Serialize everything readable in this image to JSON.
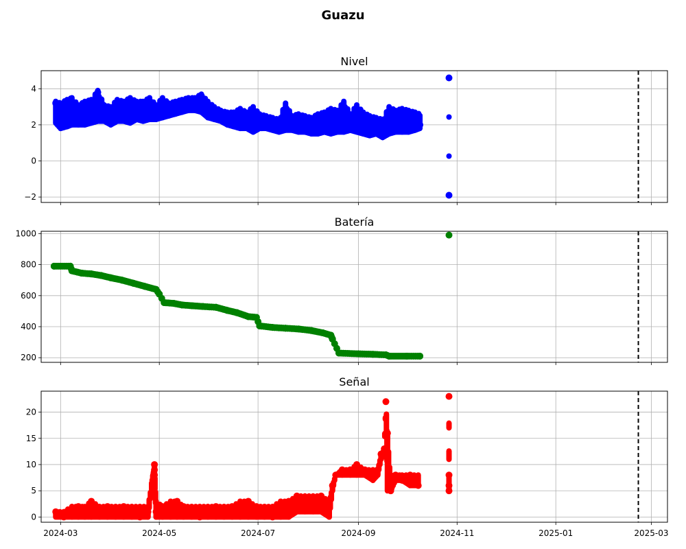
{
  "title": "Guazu",
  "colors": {
    "nivel": "#0000ff",
    "bateria": "#008000",
    "senal": "#ff0000",
    "grid": "#b0b0b0",
    "vline": "#000000"
  },
  "vline_date": "2025-02-21",
  "xlim": [
    "2024-02-18",
    "2025-03-11"
  ],
  "x_ticks": [
    "2024-03",
    "2024-05",
    "2024-07",
    "2024-09",
    "2024-11",
    "2025-01",
    "2025-03"
  ],
  "chart_data": [
    {
      "type": "scatter",
      "title": "Nivel",
      "color": "#0000ff",
      "ylim": [
        -2.3,
        5.0
      ],
      "yticks": [
        "−2",
        "0",
        "2",
        "4"
      ],
      "grid": true,
      "x": [
        "2024-02-27",
        "2024-03-01",
        "2024-03-05",
        "2024-03-08",
        "2024-03-12",
        "2024-03-16",
        "2024-03-20",
        "2024-03-24",
        "2024-03-28",
        "2024-04-01",
        "2024-04-05",
        "2024-04-09",
        "2024-04-13",
        "2024-04-17",
        "2024-04-21",
        "2024-04-25",
        "2024-04-29",
        "2024-05-03",
        "2024-05-07",
        "2024-05-11",
        "2024-05-15",
        "2024-05-19",
        "2024-05-23",
        "2024-05-27",
        "2024-05-31",
        "2024-06-04",
        "2024-06-08",
        "2024-06-12",
        "2024-06-16",
        "2024-06-20",
        "2024-06-24",
        "2024-06-28",
        "2024-07-02",
        "2024-07-06",
        "2024-07-10",
        "2024-07-14",
        "2024-07-18",
        "2024-07-22",
        "2024-07-26",
        "2024-07-30",
        "2024-08-03",
        "2024-08-07",
        "2024-08-11",
        "2024-08-15",
        "2024-08-19",
        "2024-08-23",
        "2024-08-27",
        "2024-08-31",
        "2024-09-04",
        "2024-09-08",
        "2024-09-12",
        "2024-09-16",
        "2024-09-20",
        "2024-09-24",
        "2024-09-28",
        "2024-10-02",
        "2024-10-06",
        "2024-10-09",
        "2024-10-27",
        "2024-10-27"
      ],
      "y": [
        3.2,
        2.8,
        2.5,
        3.3,
        2.6,
        2.4,
        3.0,
        3.8,
        2.7,
        2.5,
        3.0,
        2.4,
        3.4,
        2.9,
        2.6,
        3.2,
        2.7,
        3.0,
        2.6,
        2.9,
        3.1,
        3.3,
        3.2,
        3.6,
        2.9,
        2.6,
        2.5,
        2.4,
        2.3,
        2.5,
        2.2,
        2.6,
        2.1,
        2.2,
        2.0,
        1.9,
        2.8,
        2.0,
        2.2,
        1.9,
        2.1,
        2.0,
        1.9,
        2.5,
        2.1,
        3.0,
        2.0,
        2.4,
        2.2,
        1.8,
        2.1,
        1.7,
        2.7,
        2.0,
        2.2,
        2.1,
        2.4,
        2.0,
        4.6,
        -1.9
      ],
      "lows": [
        2.1,
        1.8,
        1.9,
        2.0,
        2.0,
        2.0,
        2.1,
        2.2,
        2.2,
        2.0,
        2.2,
        2.2,
        2.1,
        2.3,
        2.2,
        2.3,
        2.3,
        2.4,
        2.5,
        2.6,
        2.7,
        2.8,
        2.8,
        2.7,
        2.4,
        2.3,
        2.2,
        2.0,
        1.9,
        1.8,
        1.8,
        1.6,
        1.8,
        1.8,
        1.7,
        1.6,
        1.7,
        1.7,
        1.6,
        1.6,
        1.5,
        1.5,
        1.6,
        1.5,
        1.6,
        1.6,
        1.7,
        1.6,
        1.5,
        1.4,
        1.5,
        1.3,
        1.5,
        1.6,
        1.6,
        1.6,
        1.7,
        1.8,
        4.6,
        -1.9
      ],
      "highs": [
        3.3,
        3.2,
        3.4,
        3.5,
        3.1,
        3.3,
        3.4,
        3.9,
        3.1,
        3.0,
        3.4,
        3.3,
        3.5,
        3.3,
        3.3,
        3.5,
        3.1,
        3.5,
        3.2,
        3.3,
        3.4,
        3.5,
        3.5,
        3.7,
        3.3,
        3.0,
        2.8,
        2.7,
        2.7,
        2.9,
        2.7,
        3.0,
        2.6,
        2.5,
        2.4,
        2.3,
        3.2,
        2.5,
        2.6,
        2.5,
        2.4,
        2.6,
        2.7,
        2.9,
        2.8,
        3.3,
        2.6,
        3.1,
        2.7,
        2.5,
        2.4,
        2.3,
        3.0,
        2.8,
        2.9,
        2.8,
        2.7,
        2.6,
        4.6,
        -1.9
      ]
    },
    {
      "type": "scatter",
      "title": "Batería",
      "color": "#008000",
      "ylim": [
        170,
        1015
      ],
      "yticks": [
        "200",
        "400",
        "600",
        "800",
        "1000"
      ],
      "grid": true,
      "x": [
        "2024-02-26",
        "2024-03-07",
        "2024-03-08",
        "2024-03-14",
        "2024-03-20",
        "2024-03-26",
        "2024-04-01",
        "2024-04-08",
        "2024-04-15",
        "2024-04-22",
        "2024-04-29",
        "2024-05-01",
        "2024-05-04",
        "2024-05-10",
        "2024-05-15",
        "2024-05-21",
        "2024-05-28",
        "2024-06-05",
        "2024-06-12",
        "2024-06-18",
        "2024-06-25",
        "2024-06-30",
        "2024-07-02",
        "2024-07-10",
        "2024-07-18",
        "2024-07-26",
        "2024-08-03",
        "2024-08-10",
        "2024-08-15",
        "2024-08-16",
        "2024-08-20",
        "2024-09-01",
        "2024-09-10",
        "2024-09-18",
        "2024-09-20",
        "2024-10-01",
        "2024-10-09",
        "2024-10-27"
      ],
      "y": [
        790,
        790,
        760,
        745,
        740,
        730,
        715,
        700,
        680,
        660,
        640,
        610,
        555,
        550,
        540,
        535,
        530,
        525,
        505,
        490,
        465,
        460,
        405,
        395,
        390,
        385,
        375,
        360,
        345,
        320,
        230,
        225,
        222,
        218,
        210,
        210,
        210,
        990
      ]
    },
    {
      "type": "scatter",
      "title": "Señal",
      "color": "#ff0000",
      "ylim": [
        -1.0,
        24.0
      ],
      "yticks": [
        "0",
        "5",
        "10",
        "15",
        "20"
      ],
      "grid": true,
      "x": [
        "2024-02-27",
        "2024-03-03",
        "2024-03-08",
        "2024-03-12",
        "2024-03-16",
        "2024-03-20",
        "2024-03-25",
        "2024-03-30",
        "2024-04-04",
        "2024-04-09",
        "2024-04-14",
        "2024-04-19",
        "2024-04-24",
        "2024-04-27",
        "2024-04-28",
        "2024-04-29",
        "2024-05-03",
        "2024-05-08",
        "2024-05-12",
        "2024-05-16",
        "2024-05-21",
        "2024-05-26",
        "2024-05-31",
        "2024-06-05",
        "2024-06-10",
        "2024-06-15",
        "2024-06-20",
        "2024-06-25",
        "2024-06-30",
        "2024-07-05",
        "2024-07-10",
        "2024-07-15",
        "2024-07-20",
        "2024-07-25",
        "2024-07-30",
        "2024-08-04",
        "2024-08-09",
        "2024-08-14",
        "2024-08-16",
        "2024-08-18",
        "2024-08-22",
        "2024-08-27",
        "2024-08-31",
        "2024-09-05",
        "2024-09-10",
        "2024-09-13",
        "2024-09-15",
        "2024-09-17",
        "2024-09-18",
        "2024-09-19",
        "2024-09-21",
        "2024-09-24",
        "2024-09-28",
        "2024-10-03",
        "2024-10-08",
        "2024-10-27",
        "2024-10-27",
        "2024-10-27",
        "2024-10-27"
      ],
      "y": [
        1,
        0,
        1,
        2,
        1,
        3,
        1,
        2,
        1,
        2,
        1,
        0,
        1,
        7,
        10,
        1,
        2,
        1,
        3,
        2,
        1,
        0,
        1,
        2,
        1,
        2,
        1,
        3,
        2,
        1,
        0,
        2,
        3,
        4,
        3,
        3,
        4,
        2,
        6,
        8,
        9,
        9,
        10,
        9,
        8,
        9,
        12,
        13,
        22,
        16,
        5,
        8,
        7,
        8,
        6,
        23,
        8,
        6,
        5
      ],
      "lows": [
        0,
        0,
        0,
        0,
        0,
        0,
        0,
        0,
        0,
        0,
        0,
        0,
        0,
        7,
        8,
        0,
        0,
        0,
        0,
        0,
        0,
        0,
        0,
        0,
        0,
        0,
        0,
        0,
        0,
        0,
        0,
        0,
        0,
        1,
        1,
        1,
        1,
        0,
        5,
        8,
        8,
        8,
        8,
        8,
        7,
        8,
        11,
        12,
        22,
        5,
        5,
        7,
        7,
        6,
        6,
        23,
        5,
        5,
        5
      ],
      "highs": [
        1,
        1,
        2,
        2,
        2,
        3,
        2,
        2,
        2,
        2,
        2,
        2,
        2,
        8,
        10,
        3,
        2,
        3,
        3,
        2,
        2,
        2,
        2,
        2,
        2,
        2,
        3,
        3,
        2,
        2,
        2,
        3,
        3,
        4,
        4,
        4,
        4,
        3,
        6,
        8,
        9,
        9,
        10,
        9,
        9,
        9,
        12,
        13,
        22,
        16,
        8,
        8,
        8,
        8,
        8,
        23,
        8,
        6,
        5
      ]
    }
  ],
  "panels_extra_points": {
    "nivel_outliers": [
      {
        "x": "2024-10-27",
        "y": 4.6
      },
      {
        "x": "2024-10-27",
        "y": -1.9
      }
    ],
    "senal_extra": [
      {
        "x": "2024-04-27",
        "y": 7
      },
      {
        "x": "2024-04-28",
        "y": 8
      },
      {
        "x": "2024-04-28",
        "y": 9
      }
    ]
  }
}
